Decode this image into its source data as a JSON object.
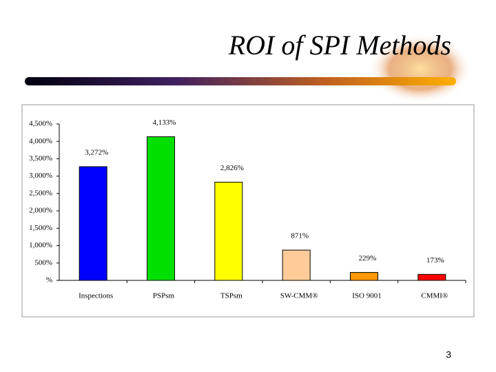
{
  "chart_data": {
    "type": "bar",
    "title": "ROI of SPI Methods",
    "categories": [
      "Inspections",
      "PSPsm",
      "TSPsm",
      "SW-CMM®",
      "ISO 9001",
      "CMMI®"
    ],
    "values": [
      3272,
      4133,
      2826,
      871,
      229,
      173
    ],
    "value_labels": [
      "3,272%",
      "4,133%",
      "2,826%",
      "871%",
      "229%",
      "173%"
    ],
    "colors": [
      "#0000ff",
      "#00e000",
      "#ffff00",
      "#ffcc99",
      "#ff9900",
      "#ff0000"
    ],
    "ylim": [
      0,
      4500
    ],
    "yticks": [
      {
        "value": 0,
        "label": "%"
      },
      {
        "value": 500,
        "label": "500%"
      },
      {
        "value": 1000,
        "label": "1,000%"
      },
      {
        "value": 1500,
        "label": "1,500%"
      },
      {
        "value": 2000,
        "label": "2,000%"
      },
      {
        "value": 2500,
        "label": "2,500%"
      },
      {
        "value": 3000,
        "label": "3,000%"
      },
      {
        "value": 3500,
        "label": "3,500%"
      },
      {
        "value": 4000,
        "label": "4,000%"
      },
      {
        "value": 4500,
        "label": "4,500%"
      }
    ],
    "grid": false
  },
  "page_number": "3"
}
